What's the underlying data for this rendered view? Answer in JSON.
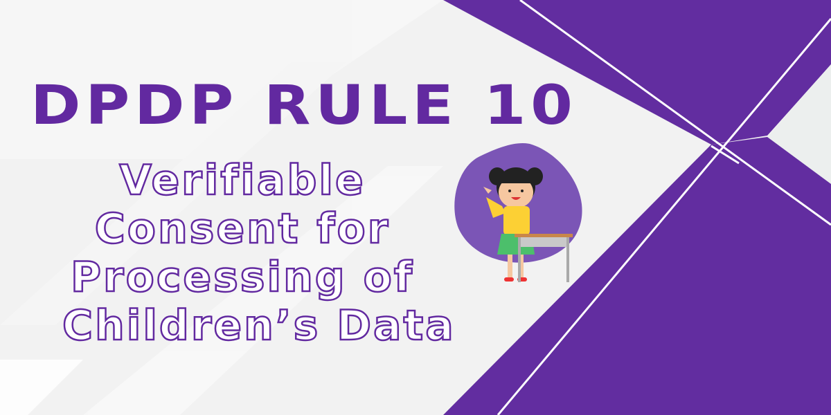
{
  "banner": {
    "title": "DPDP RULE 10",
    "subtitle_lines": [
      "Verifiable",
      "Consent for",
      "Processing of",
      "Children’s Data"
    ],
    "colors": {
      "primary": "#622da0",
      "blob": "#7b55b6",
      "background": "#f2f2f2"
    },
    "illustration": "girl-waving-at-desk"
  }
}
